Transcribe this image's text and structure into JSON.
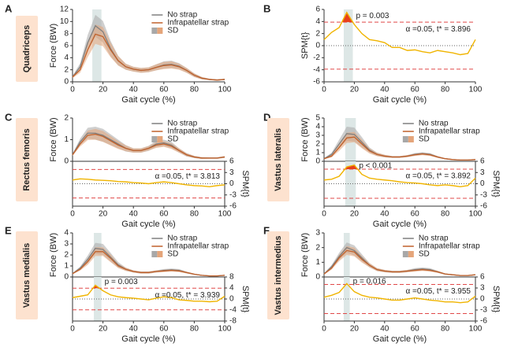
{
  "chart_data": [
    {
      "type": "line",
      "panel": "A",
      "muscle": "Quadriceps",
      "ylabel": "Force (BW)",
      "xlabel": "Gait cycle (%)",
      "x": [
        0,
        5,
        10,
        15,
        20,
        25,
        30,
        35,
        40,
        45,
        50,
        55,
        60,
        65,
        70,
        75,
        80,
        85,
        90,
        95,
        100
      ],
      "xlim": [
        0,
        100
      ],
      "xticks": [
        0,
        20,
        40,
        60,
        80,
        100
      ],
      "ylim": [
        0,
        12
      ],
      "yticks": [
        0,
        2,
        4,
        6,
        8,
        10,
        12
      ],
      "highlight_x": [
        13,
        19
      ],
      "band_label": "SD",
      "series": [
        {
          "name": "No strap",
          "color": "#7f7f7f",
          "band_color": "#a8a8a8",
          "values": [
            0.8,
            2.5,
            6.5,
            9.3,
            8.3,
            5.5,
            3.5,
            2.5,
            2.1,
            1.9,
            2.0,
            2.4,
            2.8,
            2.9,
            2.6,
            1.9,
            1.1,
            0.6,
            0.4,
            0.3,
            0.4
          ],
          "sd": [
            0.2,
            0.6,
            1.3,
            1.8,
            1.8,
            1.3,
            0.8,
            0.5,
            0.4,
            0.4,
            0.4,
            0.5,
            0.6,
            0.6,
            0.5,
            0.4,
            0.3,
            0.2,
            0.1,
            0.1,
            0.1
          ]
        },
        {
          "name": "Infrapatellar strap",
          "color": "#c0612b",
          "band_color": "#e5a57a",
          "values": [
            0.8,
            2.0,
            5.3,
            7.9,
            7.5,
            5.3,
            3.5,
            2.5,
            2.1,
            1.9,
            2.0,
            2.4,
            2.7,
            2.8,
            2.5,
            1.9,
            1.1,
            0.6,
            0.4,
            0.3,
            0.4
          ],
          "sd": [
            0.2,
            0.5,
            1.2,
            1.6,
            1.6,
            1.2,
            0.8,
            0.5,
            0.4,
            0.4,
            0.4,
            0.5,
            0.6,
            0.6,
            0.5,
            0.4,
            0.3,
            0.2,
            0.1,
            0.1,
            0.1
          ]
        }
      ]
    },
    {
      "type": "spm",
      "panel": "B",
      "ylabel": "SPM{t}",
      "xlabel": "Gait cycle (%)",
      "y_axis_side": "left",
      "x": [
        0,
        5,
        10,
        15,
        20,
        25,
        30,
        35,
        40,
        45,
        50,
        55,
        60,
        65,
        70,
        75,
        80,
        85,
        90,
        95,
        100
      ],
      "xlim": [
        0,
        100
      ],
      "xticks": [
        0,
        20,
        40,
        60,
        80,
        100
      ],
      "ylim": [
        -6,
        6
      ],
      "yticks": [
        -6,
        -4,
        -2,
        0,
        2,
        4,
        6
      ],
      "highlight_x": [
        13,
        19
      ],
      "threshold": 3.896,
      "threshold_label": "α =0.05,  t* = 3.896",
      "p_label": "p = 0.003",
      "series": [
        {
          "color": "#f0b400",
          "values": [
            1.0,
            2.2,
            3.0,
            5.5,
            3.5,
            2.0,
            1.0,
            0.8,
            0.5,
            -0.3,
            -0.3,
            -0.8,
            -0.7,
            -1.0,
            -1.2,
            -0.8,
            -1.0,
            -1.2,
            -1.5,
            -1.3,
            1.0
          ]
        }
      ]
    },
    {
      "type": "line",
      "panel": "C",
      "muscle": "Rectus femoris",
      "ylabel": "Force (BW)",
      "x": [
        0,
        5,
        10,
        15,
        20,
        25,
        30,
        35,
        40,
        45,
        50,
        55,
        60,
        65,
        70,
        75,
        80,
        85,
        90,
        95,
        100
      ],
      "xlim": [
        0,
        100
      ],
      "ylim": [
        0,
        2
      ],
      "yticks": [
        0,
        1,
        2
      ],
      "band_label": "SD",
      "series": [
        {
          "name": "No strap",
          "color": "#7f7f7f",
          "band_color": "#a8a8a8",
          "values": [
            0.3,
            0.9,
            1.3,
            1.3,
            1.2,
            1.0,
            0.8,
            0.6,
            0.5,
            0.5,
            0.6,
            0.8,
            0.85,
            0.75,
            0.5,
            0.3,
            0.2,
            0.15,
            0.15,
            0.15,
            0.2
          ],
          "sd": [
            0.05,
            0.15,
            0.25,
            0.3,
            0.3,
            0.25,
            0.2,
            0.15,
            0.1,
            0.1,
            0.12,
            0.15,
            0.15,
            0.15,
            0.1,
            0.08,
            0.05,
            0.04,
            0.03,
            0.03,
            0.04
          ]
        },
        {
          "name": "Infrapatellar strap",
          "color": "#c0612b",
          "band_color": "#e5a57a",
          "values": [
            0.3,
            0.8,
            1.2,
            1.25,
            1.15,
            0.95,
            0.75,
            0.6,
            0.5,
            0.5,
            0.6,
            0.75,
            0.8,
            0.7,
            0.5,
            0.3,
            0.2,
            0.15,
            0.15,
            0.15,
            0.2
          ],
          "sd": [
            0.05,
            0.12,
            0.22,
            0.25,
            0.25,
            0.22,
            0.18,
            0.13,
            0.1,
            0.1,
            0.1,
            0.13,
            0.13,
            0.13,
            0.1,
            0.07,
            0.05,
            0.04,
            0.03,
            0.03,
            0.04
          ]
        }
      ]
    },
    {
      "type": "spm",
      "ylabel": "SPM{t}",
      "xlabel": "Gait cycle (%)",
      "y_axis_side": "right",
      "x": [
        0,
        5,
        10,
        15,
        20,
        25,
        30,
        35,
        40,
        45,
        50,
        55,
        60,
        65,
        70,
        75,
        80,
        85,
        90,
        95,
        100
      ],
      "xlim": [
        0,
        100
      ],
      "xticks": [
        0,
        20,
        40,
        60,
        80,
        100
      ],
      "ylim": [
        -6,
        6
      ],
      "yticks": [
        -6,
        -3,
        0,
        3,
        6
      ],
      "threshold": 3.813,
      "threshold_label": "α =0.05,  t* = 3.813",
      "series": [
        {
          "color": "#f0b400",
          "values": [
            1.0,
            1.3,
            1.2,
            1.0,
            0.9,
            0.8,
            0.6,
            0.5,
            0.3,
            0.2,
            0.0,
            0.3,
            0.5,
            0.3,
            0.0,
            -0.3,
            -0.5,
            -0.6,
            -0.8,
            -0.5,
            -0.3
          ]
        }
      ]
    },
    {
      "type": "line",
      "panel": "D",
      "muscle": "Vastus lateralis",
      "ylabel": "Force (BW)",
      "x": [
        0,
        5,
        10,
        15,
        20,
        25,
        30,
        35,
        40,
        45,
        50,
        55,
        60,
        65,
        70,
        75,
        80,
        85,
        90,
        95,
        100
      ],
      "xlim": [
        0,
        100
      ],
      "ylim": [
        0,
        5
      ],
      "yticks": [
        0,
        1,
        2,
        3,
        4,
        5
      ],
      "highlight_x": [
        14,
        21
      ],
      "band_label": "SD",
      "series": [
        {
          "name": "No strap",
          "color": "#7f7f7f",
          "band_color": "#a8a8a8",
          "values": [
            0.3,
            0.8,
            2.0,
            3.2,
            3.1,
            2.2,
            1.3,
            0.8,
            0.6,
            0.5,
            0.5,
            0.6,
            0.8,
            0.9,
            0.8,
            0.5,
            0.3,
            0.2,
            0.15,
            0.15,
            0.2
          ],
          "sd": [
            0.05,
            0.2,
            0.5,
            0.8,
            0.8,
            0.6,
            0.3,
            0.2,
            0.15,
            0.1,
            0.1,
            0.12,
            0.15,
            0.15,
            0.15,
            0.1,
            0.06,
            0.04,
            0.03,
            0.03,
            0.04
          ]
        },
        {
          "name": "Infrapatellar strap",
          "color": "#c0612b",
          "band_color": "#e5a57a",
          "values": [
            0.3,
            0.6,
            1.6,
            2.7,
            2.8,
            2.0,
            1.2,
            0.8,
            0.6,
            0.5,
            0.5,
            0.6,
            0.75,
            0.85,
            0.75,
            0.5,
            0.3,
            0.2,
            0.15,
            0.15,
            0.2
          ],
          "sd": [
            0.05,
            0.15,
            0.4,
            0.6,
            0.6,
            0.5,
            0.3,
            0.2,
            0.15,
            0.1,
            0.1,
            0.12,
            0.14,
            0.14,
            0.14,
            0.1,
            0.06,
            0.04,
            0.03,
            0.03,
            0.04
          ]
        }
      ]
    },
    {
      "type": "spm",
      "ylabel": "SPM{t}",
      "xlabel": "Gait cycle (%)",
      "y_axis_side": "right",
      "x": [
        0,
        5,
        10,
        15,
        20,
        25,
        30,
        35,
        40,
        45,
        50,
        55,
        60,
        65,
        70,
        75,
        80,
        85,
        90,
        95,
        100
      ],
      "xlim": [
        0,
        100
      ],
      "xticks": [
        0,
        20,
        40,
        60,
        80,
        100
      ],
      "ylim": [
        -6,
        6
      ],
      "yticks": [
        -6,
        -3,
        0,
        3,
        6
      ],
      "highlight_x": [
        14,
        21
      ],
      "threshold": 3.892,
      "threshold_label": "α =0.05,  t* = 3.892",
      "p_label": "p < 0.001",
      "series": [
        {
          "color": "#f0b400",
          "values": [
            1.0,
            1.2,
            2.0,
            4.5,
            5.0,
            2.5,
            1.5,
            1.2,
            1.0,
            0.8,
            0.5,
            0.3,
            0.2,
            0.0,
            -0.3,
            -0.5,
            -0.3,
            -0.5,
            -0.8,
            -0.5,
            1.5
          ]
        }
      ]
    },
    {
      "type": "line",
      "panel": "E",
      "muscle": "Vastus medialis",
      "ylabel": "Force (BW)",
      "x": [
        0,
        5,
        10,
        15,
        20,
        25,
        30,
        35,
        40,
        45,
        50,
        55,
        60,
        65,
        70,
        75,
        80,
        85,
        90,
        95,
        100
      ],
      "xlim": [
        0,
        100
      ],
      "ylim": [
        0,
        4
      ],
      "yticks": [
        0,
        1,
        2,
        3,
        4
      ],
      "highlight_x": [
        14,
        19
      ],
      "band_label": "SD",
      "series": [
        {
          "name": "No strap",
          "color": "#7f7f7f",
          "band_color": "#a8a8a8",
          "values": [
            0.3,
            0.8,
            1.6,
            2.6,
            2.5,
            1.8,
            1.1,
            0.7,
            0.5,
            0.4,
            0.4,
            0.5,
            0.6,
            0.65,
            0.6,
            0.4,
            0.25,
            0.15,
            0.1,
            0.1,
            0.15
          ],
          "sd": [
            0.05,
            0.15,
            0.35,
            0.5,
            0.5,
            0.4,
            0.25,
            0.15,
            0.1,
            0.1,
            0.1,
            0.1,
            0.12,
            0.12,
            0.12,
            0.08,
            0.05,
            0.03,
            0.02,
            0.02,
            0.03
          ]
        },
        {
          "name": "Infrapatellar strap",
          "color": "#c0612b",
          "band_color": "#e5a57a",
          "values": [
            0.3,
            0.7,
            1.4,
            2.3,
            2.3,
            1.7,
            1.0,
            0.7,
            0.5,
            0.4,
            0.4,
            0.5,
            0.55,
            0.6,
            0.55,
            0.4,
            0.25,
            0.15,
            0.1,
            0.1,
            0.15
          ],
          "sd": [
            0.05,
            0.12,
            0.3,
            0.4,
            0.4,
            0.35,
            0.2,
            0.15,
            0.1,
            0.1,
            0.1,
            0.1,
            0.11,
            0.11,
            0.11,
            0.08,
            0.05,
            0.03,
            0.02,
            0.02,
            0.03
          ]
        }
      ]
    },
    {
      "type": "spm",
      "ylabel": "SPM{t}",
      "xlabel": "Gait cycle (%)",
      "y_axis_side": "right",
      "x": [
        0,
        5,
        10,
        15,
        20,
        25,
        30,
        35,
        40,
        45,
        50,
        55,
        60,
        65,
        70,
        75,
        80,
        85,
        90,
        95,
        100
      ],
      "xlim": [
        0,
        100
      ],
      "xticks": [
        0,
        20,
        40,
        60,
        80,
        100
      ],
      "ylim": [
        -8,
        8
      ],
      "yticks": [
        -8,
        -4,
        0,
        4,
        8
      ],
      "highlight_x": [
        14,
        19
      ],
      "threshold": 3.939,
      "threshold_label": "α =0.05,  t* = 3.939",
      "p_label": "p = 0.003",
      "series": [
        {
          "color": "#f0b400",
          "values": [
            0.5,
            1.0,
            1.5,
            5.0,
            3.0,
            1.5,
            0.8,
            0.5,
            0.3,
            0.0,
            -0.3,
            0.3,
            0.8,
            0.5,
            -0.3,
            -0.5,
            -0.8,
            -0.8,
            -1.0,
            -0.8,
            1.0
          ]
        }
      ]
    },
    {
      "type": "line",
      "panel": "F",
      "muscle": "Vastus intermedius",
      "ylabel": "Force (BW)",
      "x": [
        0,
        5,
        10,
        15,
        20,
        25,
        30,
        35,
        40,
        45,
        50,
        55,
        60,
        65,
        70,
        75,
        80,
        85,
        90,
        95,
        100
      ],
      "xlim": [
        0,
        100
      ],
      "ylim": [
        0,
        3
      ],
      "yticks": [
        0,
        1,
        2,
        3
      ],
      "highlight_x": [
        13,
        17
      ],
      "band_label": "SD",
      "series": [
        {
          "name": "No strap",
          "color": "#7f7f7f",
          "band_color": "#a8a8a8",
          "values": [
            0.2,
            0.7,
            1.4,
            2.0,
            1.8,
            1.3,
            0.8,
            0.5,
            0.4,
            0.35,
            0.35,
            0.4,
            0.5,
            0.55,
            0.5,
            0.35,
            0.2,
            0.15,
            0.1,
            0.1,
            0.15
          ],
          "sd": [
            0.04,
            0.12,
            0.25,
            0.35,
            0.35,
            0.25,
            0.15,
            0.1,
            0.08,
            0.07,
            0.07,
            0.08,
            0.1,
            0.1,
            0.1,
            0.07,
            0.04,
            0.03,
            0.02,
            0.02,
            0.03
          ]
        },
        {
          "name": "Infrapatellar strap",
          "color": "#c0612b",
          "band_color": "#e5a57a",
          "values": [
            0.2,
            0.6,
            1.3,
            1.8,
            1.7,
            1.2,
            0.8,
            0.5,
            0.4,
            0.35,
            0.35,
            0.4,
            0.45,
            0.5,
            0.45,
            0.35,
            0.2,
            0.15,
            0.1,
            0.1,
            0.15
          ],
          "sd": [
            0.04,
            0.1,
            0.22,
            0.3,
            0.3,
            0.22,
            0.14,
            0.1,
            0.08,
            0.07,
            0.07,
            0.08,
            0.09,
            0.09,
            0.09,
            0.07,
            0.04,
            0.03,
            0.02,
            0.02,
            0.03
          ]
        }
      ]
    },
    {
      "type": "spm",
      "ylabel": "SPM{t}",
      "xlabel": "Gait cycle (%)",
      "y_axis_side": "right",
      "x": [
        0,
        5,
        10,
        15,
        20,
        25,
        30,
        35,
        40,
        45,
        50,
        55,
        60,
        65,
        70,
        75,
        80,
        85,
        90,
        95,
        100
      ],
      "xlim": [
        0,
        100
      ],
      "xticks": [
        0,
        20,
        40,
        60,
        80,
        100
      ],
      "ylim": [
        -6,
        6
      ],
      "yticks": [
        -6,
        -3,
        0,
        3,
        6
      ],
      "highlight_x": [
        13,
        17
      ],
      "threshold": 3.955,
      "threshold_label": "α =0.05,  t* = 3.955",
      "p_label": "p = 0.016",
      "series": [
        {
          "color": "#f0b400",
          "values": [
            0.5,
            1.0,
            1.8,
            4.2,
            2.0,
            1.0,
            0.5,
            0.3,
            0.0,
            -0.3,
            -0.3,
            0.0,
            0.3,
            0.0,
            -0.3,
            -0.5,
            -0.8,
            -0.8,
            -1.0,
            -0.8,
            0.8
          ]
        }
      ]
    }
  ]
}
